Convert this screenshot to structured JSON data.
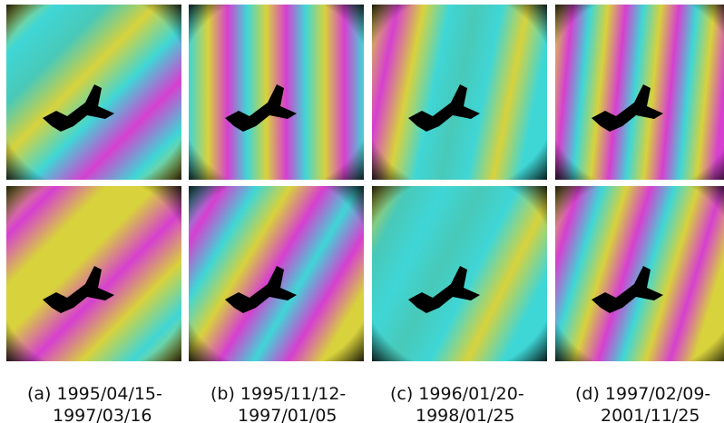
{
  "figure": {
    "captions": [
      {
        "line1": "(a) 1995/04/15-",
        "line2": "1997/03/16"
      },
      {
        "line1": "(b) 1995/11/12-",
        "line2": "1997/01/05"
      },
      {
        "line1": "(c) 1996/01/20-",
        "line2": "1998/01/25"
      },
      {
        "line1": "(d) 1997/02/09-",
        "line2": "2001/11/25"
      }
    ]
  }
}
